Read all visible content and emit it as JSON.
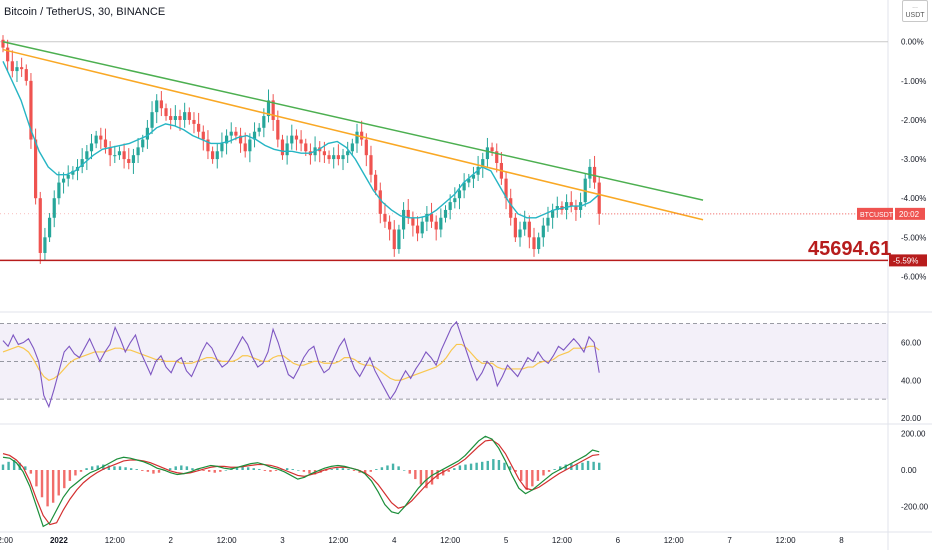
{
  "header": {
    "title": "Bitcoin / TetherUS, 30, BINANCE",
    "currency_badge": "USDT"
  },
  "price_annotation": "45694.61",
  "tickers": {
    "symbol": "BTCUSDT",
    "countdown": "20:02",
    "support_pct": "-5.59%"
  },
  "colors": {
    "green_trendline": "#4caf50",
    "yellow_trendline": "#f9a825",
    "support_line": "#b71c1c",
    "candle_up": "#26a69a",
    "candle_down": "#ef5350",
    "ema": "#26b5c4",
    "rsi_line": "#7e57c2",
    "rsi_ma": "#f9c74f",
    "macd_line": "#1b8e3a",
    "signal_line": "#d32f2f",
    "hist_up": "#26a69a",
    "hist_down": "#ef5350"
  },
  "chart_data": [
    {
      "type": "candlestick",
      "panel": "price",
      "y_unit": "% change",
      "ylim": [
        -6.5,
        0.3
      ],
      "yticks": [
        "0.00%",
        "-1.00%",
        "-2.00%",
        "-3.00%",
        "-4.00%",
        "-5.00%",
        "-6.00%"
      ],
      "ytick_values": [
        0,
        -1,
        -2,
        -3,
        -4,
        -5,
        -6
      ],
      "xticks": [
        "12:00",
        "2022",
        "12:00",
        "2",
        "12:00",
        "3",
        "12:00",
        "4",
        "12:00",
        "5",
        "12:00",
        "6",
        "12:00",
        "7",
        "12:00",
        "8"
      ],
      "xtick_bars": [
        0,
        12,
        24,
        36,
        48,
        60,
        72,
        84,
        96,
        108,
        120,
        132,
        144,
        156,
        168,
        180
      ],
      "closes": [
        -0.15,
        -0.5,
        -0.75,
        -0.65,
        -0.7,
        -1.0,
        -2.5,
        -4.0,
        -5.4,
        -5.0,
        -4.5,
        -4.0,
        -3.6,
        -3.5,
        -3.4,
        -3.3,
        -3.2,
        -3.0,
        -2.8,
        -2.6,
        -2.4,
        -2.5,
        -2.7,
        -2.9,
        -2.9,
        -2.8,
        -3.0,
        -3.1,
        -2.9,
        -2.7,
        -2.5,
        -2.2,
        -1.8,
        -1.5,
        -1.7,
        -1.9,
        -2.0,
        -1.9,
        -2.0,
        -1.8,
        -2.0,
        -2.1,
        -2.3,
        -2.5,
        -2.8,
        -3.0,
        -2.8,
        -2.6,
        -2.4,
        -2.3,
        -2.4,
        -2.6,
        -2.8,
        -2.5,
        -2.3,
        -2.2,
        -1.9,
        -1.5,
        -2.0,
        -2.5,
        -2.9,
        -2.6,
        -2.4,
        -2.5,
        -2.6,
        -2.8,
        -2.9,
        -2.7,
        -2.8,
        -2.9,
        -3.0,
        -2.9,
        -3.0,
        -2.9,
        -2.8,
        -2.6,
        -2.3,
        -2.5,
        -2.9,
        -3.4,
        -3.8,
        -4.4,
        -4.6,
        -4.8,
        -5.3,
        -4.8,
        -4.3,
        -4.5,
        -4.7,
        -4.9,
        -4.6,
        -4.4,
        -4.6,
        -4.8,
        -4.5,
        -4.3,
        -4.1,
        -4.0,
        -3.8,
        -3.6,
        -3.5,
        -3.4,
        -3.2,
        -3.0,
        -2.7,
        -2.8,
        -3.1,
        -3.5,
        -4.0,
        -4.5,
        -5.0,
        -4.8,
        -4.6,
        -5.0,
        -5.3,
        -5.0,
        -4.7,
        -4.5,
        -4.3,
        -4.2,
        -4.3,
        -4.1,
        -4.2,
        -4.3,
        -4.1,
        -3.5,
        -3.2,
        -3.6,
        -4.4
      ],
      "bounds": [
        -0.85,
        -0.05,
        -0.85,
        -0.4,
        -2.3,
        -5.59,
        -5.6,
        -1.2,
        -1.0,
        -1.2,
        -2.35,
        -3.4,
        -1.7,
        -1.9,
        -2.3,
        -3.45,
        -4.3,
        -4.8,
        -4.6,
        -4.35,
        -2.7,
        -3.4,
        -2.85,
        -5.1,
        -5.6,
        -4.45,
        -4.0,
        -3.85,
        -4.2,
        -3.35,
        -4.4,
        -3.6,
        -4.35,
        -3.85,
        -3.55,
        -3.7
      ],
      "bounds_note": "intraday high/low ranges",
      "ema": [
        -0.5,
        -1.0,
        -1.5,
        -2.2,
        -2.8,
        -3.2,
        -3.4,
        -3.4,
        -3.3,
        -3.1,
        -2.9,
        -2.75,
        -2.7,
        -2.65,
        -2.6,
        -2.5,
        -2.4,
        -2.2,
        -2.1,
        -2.15,
        -2.25,
        -2.4,
        -2.5,
        -2.6,
        -2.6,
        -2.55,
        -2.45,
        -2.4,
        -2.5,
        -2.65,
        -2.75,
        -2.8,
        -2.8,
        -2.85,
        -2.85,
        -2.75,
        -2.6,
        -2.55,
        -2.7,
        -3.0,
        -3.4,
        -3.8,
        -4.1,
        -4.3,
        -4.45,
        -4.5,
        -4.5,
        -4.45,
        -4.3,
        -4.1,
        -3.9,
        -3.6,
        -3.4,
        -3.2,
        -3.3,
        -3.7,
        -4.1,
        -4.4,
        -4.5,
        -4.5,
        -4.4,
        -4.3,
        -4.25,
        -4.2,
        -4.2,
        -4.1,
        -3.9
      ],
      "trendlines": [
        {
          "name": "green",
          "from": {
            "bar": 0,
            "pct": 0.0
          },
          "to": {
            "bar": 146,
            "pct": -4.05
          }
        },
        {
          "name": "yellow",
          "from": {
            "bar": 0,
            "pct": -0.2
          },
          "to": {
            "bar": 146,
            "pct": -4.55
          }
        }
      ],
      "support_level": -5.59,
      "last_value": -4.4
    },
    {
      "type": "line",
      "panel": "rsi",
      "ylim": [
        20,
        73
      ],
      "yticks": [
        "60.00",
        "40.00",
        "20.00"
      ],
      "ytick_values": [
        60,
        40,
        20
      ],
      "bands": [
        70,
        50,
        30
      ],
      "series": [
        {
          "values": [
            61,
            58,
            64,
            59,
            60,
            62,
            57,
            50,
            32,
            26,
            35,
            45,
            55,
            58,
            54,
            52,
            57,
            62,
            56,
            50,
            55,
            59,
            68,
            62,
            55,
            60,
            64,
            55,
            49,
            43,
            50,
            53,
            47,
            44,
            50,
            52,
            45,
            42,
            48,
            55,
            60,
            57,
            51,
            47,
            49,
            53,
            58,
            63,
            59,
            52,
            47,
            49,
            55,
            67,
            60,
            51,
            43,
            41,
            46,
            52,
            56,
            58,
            49,
            44,
            46,
            52,
            58,
            62,
            53,
            46,
            42,
            47,
            52,
            45,
            40,
            35,
            30,
            34,
            40,
            45,
            41,
            46,
            50,
            55,
            52,
            48,
            56,
            62,
            68,
            71,
            63,
            55,
            47,
            40,
            44,
            50,
            47,
            37,
            42,
            48,
            45,
            42,
            47,
            52,
            50,
            55,
            51,
            49,
            53,
            58,
            56,
            59,
            62,
            59,
            55,
            63,
            60,
            44
          ]
        },
        {
          "values": [
            55,
            56,
            57,
            58,
            57,
            55,
            51,
            46,
            42,
            40,
            41,
            43,
            46,
            49,
            51,
            52,
            53,
            54,
            55,
            55,
            55,
            56,
            57,
            57,
            56,
            56,
            55,
            54,
            53,
            52,
            51,
            51,
            50,
            50,
            50,
            49,
            49,
            49,
            50,
            51,
            52,
            52,
            51,
            50,
            50,
            50,
            51,
            53,
            53,
            52,
            51,
            50,
            50,
            52,
            53,
            53,
            51,
            49,
            48,
            48,
            49,
            50,
            50,
            49,
            49,
            49,
            50,
            52,
            52,
            51,
            49,
            48,
            48,
            47,
            45,
            43,
            41,
            40,
            40,
            41,
            42,
            43,
            44,
            45,
            46,
            47,
            49,
            52,
            56,
            59,
            59,
            57,
            54,
            51,
            49,
            49,
            49,
            47,
            46,
            46,
            46,
            46,
            46,
            47,
            47,
            49,
            50,
            50,
            51,
            53,
            54,
            55,
            57,
            57,
            57,
            58,
            58,
            56
          ]
        }
      ]
    },
    {
      "type": "bar+line",
      "panel": "macd",
      "ylim": [
        -330,
        220
      ],
      "yticks": [
        "200.00",
        "0.00",
        "-200.00"
      ],
      "ytick_values": [
        200,
        0,
        -200
      ],
      "histogram": [
        30,
        45,
        55,
        40,
        20,
        -20,
        -90,
        -150,
        -200,
        -180,
        -140,
        -100,
        -60,
        -30,
        -10,
        10,
        20,
        25,
        30,
        25,
        20,
        20,
        15,
        10,
        5,
        -5,
        -10,
        -20,
        -15,
        -5,
        10,
        20,
        25,
        20,
        10,
        5,
        -5,
        -10,
        -15,
        -10,
        0,
        10,
        15,
        20,
        15,
        10,
        5,
        -5,
        -10,
        -5,
        5,
        10,
        5,
        0,
        -10,
        -20,
        -25,
        -15,
        -5,
        5,
        10,
        10,
        5,
        -5,
        -15,
        -20,
        -10,
        5,
        15,
        25,
        35,
        20,
        0,
        -20,
        -50,
        -80,
        -100,
        -80,
        -50,
        -30,
        -10,
        10,
        25,
        30,
        35,
        40,
        45,
        50,
        60,
        55,
        40,
        20,
        -10,
        -60,
        -110,
        -90,
        -60,
        -30,
        -10,
        5,
        20,
        30,
        35,
        30,
        40,
        50,
        45,
        40
      ],
      "macd": [
        70,
        65,
        40,
        -10,
        -90,
        -200,
        -310,
        -290,
        -220,
        -150,
        -100,
        -70,
        -40,
        -15,
        0,
        20,
        40,
        60,
        70,
        65,
        55,
        45,
        30,
        10,
        0,
        -15,
        -25,
        -20,
        -10,
        5,
        15,
        25,
        20,
        10,
        5,
        15,
        25,
        35,
        40,
        30,
        15,
        5,
        -10,
        -30,
        -50,
        -40,
        -20,
        -5,
        10,
        20,
        25,
        20,
        10,
        0,
        -20,
        -60,
        -120,
        -190,
        -230,
        -240,
        -200,
        -150,
        -100,
        -60,
        -30,
        -10,
        10,
        30,
        50,
        80,
        120,
        160,
        185,
        170,
        120,
        50,
        -30,
        -100,
        -130,
        -110,
        -80,
        -50,
        -20,
        0,
        20,
        40,
        60,
        80,
        110,
        100
      ],
      "signal": [
        90,
        80,
        55,
        15,
        -60,
        -160,
        -250,
        -300,
        -290,
        -220,
        -160,
        -110,
        -70,
        -40,
        -15,
        5,
        20,
        35,
        50,
        55,
        55,
        50,
        40,
        25,
        10,
        -5,
        -15,
        -20,
        -15,
        -5,
        5,
        15,
        20,
        20,
        15,
        15,
        20,
        25,
        30,
        30,
        25,
        15,
        0,
        -15,
        -30,
        -35,
        -25,
        -15,
        0,
        10,
        15,
        15,
        10,
        0,
        -15,
        -40,
        -80,
        -130,
        -180,
        -210,
        -200,
        -170,
        -130,
        -90,
        -55,
        -25,
        -5,
        15,
        35,
        60,
        95,
        130,
        160,
        165,
        140,
        90,
        20,
        -50,
        -100,
        -110,
        -95,
        -70,
        -45,
        -20,
        0,
        20,
        40,
        60,
        80,
        85
      ]
    }
  ]
}
